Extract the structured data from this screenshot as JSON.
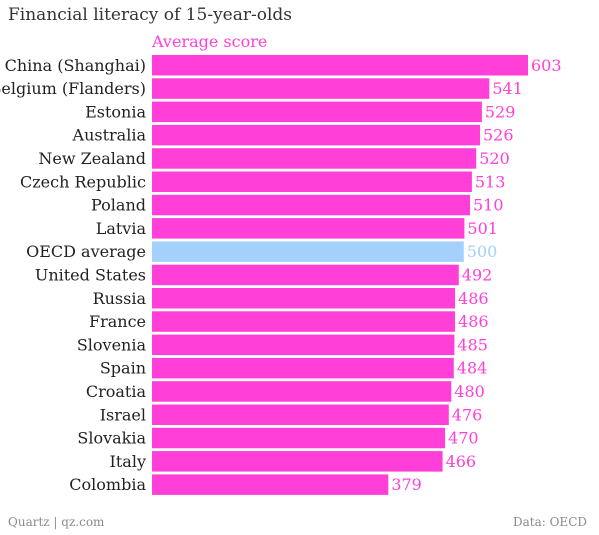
{
  "title": "Financial literacy of 15-year-olds",
  "source": "Quartz | qz.com",
  "data_credit": "Data: OECD",
  "colors": {
    "bar": "#ff3fd8",
    "highlight": "#a3d1fb"
  },
  "chart_data": {
    "type": "bar",
    "orientation": "horizontal",
    "series": [
      {
        "name": "Average score"
      }
    ],
    "categories": [
      "China (Shanghai)",
      "Belgium (Flanders)",
      "Estonia",
      "Australia",
      "New Zealand",
      "Czech Republic",
      "Poland",
      "Latvia",
      "OECD average",
      "United States",
      "Russia",
      "France",
      "Slovenia",
      "Spain",
      "Croatia",
      "Israel",
      "Slovakia",
      "Italy",
      "Colombia"
    ],
    "values": [
      603,
      541,
      529,
      526,
      520,
      513,
      510,
      501,
      500,
      492,
      486,
      486,
      485,
      484,
      480,
      476,
      470,
      466,
      379
    ],
    "highlight": "OECD average",
    "xlim": [
      0,
      603
    ],
    "grid": false,
    "legend": "top-left"
  }
}
